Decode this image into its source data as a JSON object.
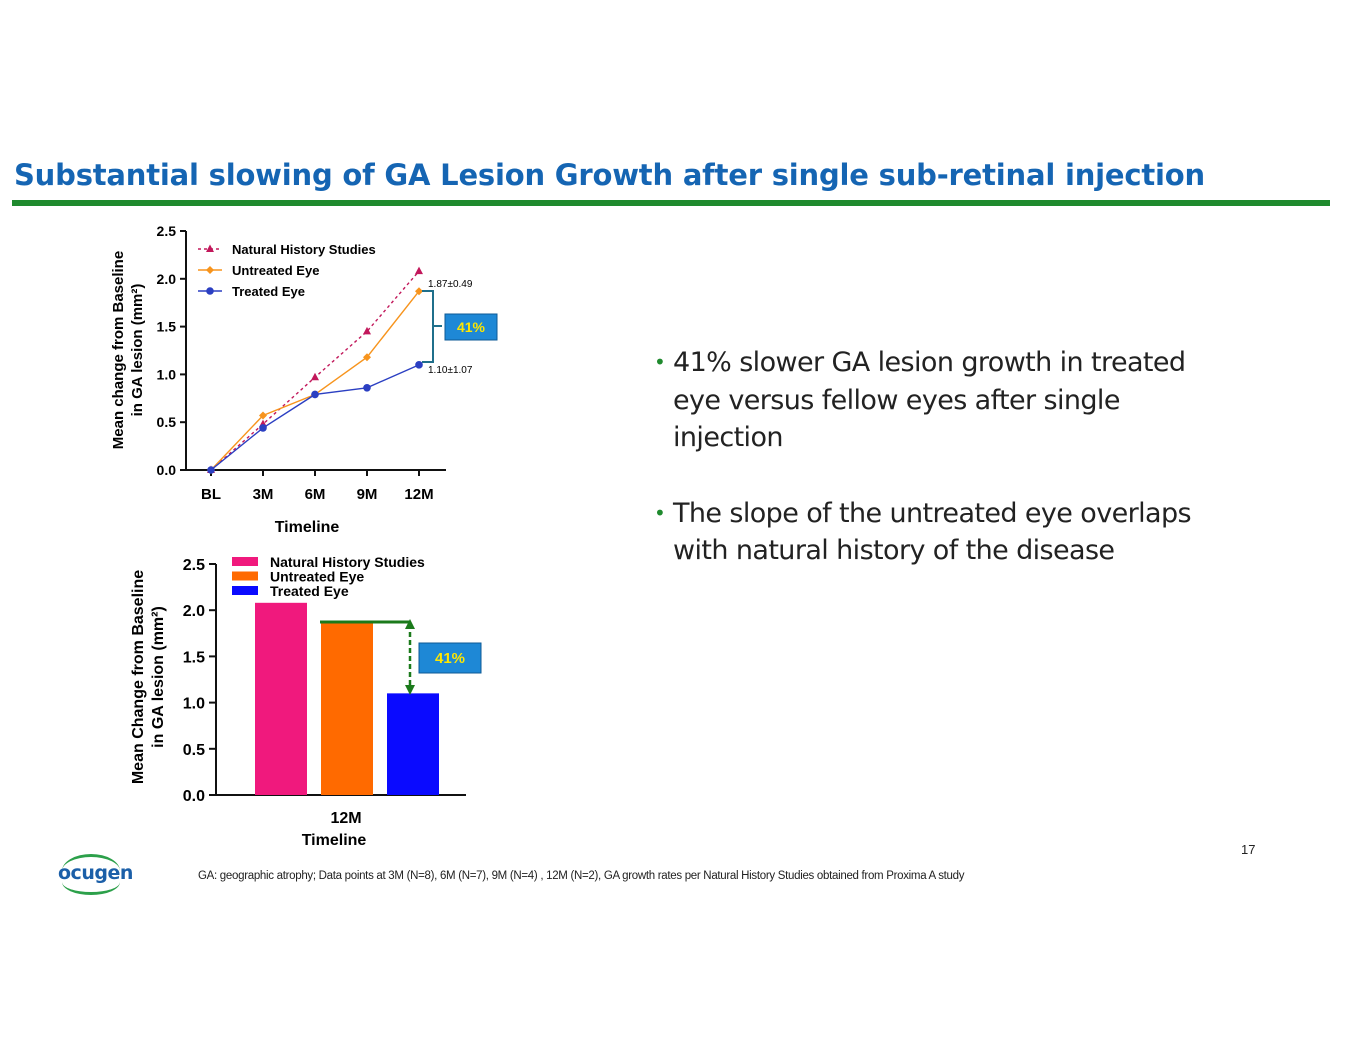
{
  "slide": {
    "title": "Substantial slowing of GA Lesion Growth after single sub-retinal injection",
    "bullets": [
      "41% slower GA lesion growth in treated eye versus fellow eyes after single injection",
      "The slope of the untreated eye overlaps with natural history of the disease"
    ],
    "footnote": "GA: geographic atrophy; Data points at 3M (N=8), 6M (N=7), 9M (N=4) , 12M (N=2), GA growth rates per Natural History Studies obtained from Proxima A study",
    "page_number": "17",
    "logo_text": "ocugen"
  },
  "colors": {
    "title": "#1565b3",
    "rule": "#1f8a2e",
    "natural_history": "#c2185b",
    "untreated": "#f7941d",
    "treated": "#2b3fc2",
    "bar_natural": "#f0197d",
    "bar_untreated": "#ff6a00",
    "bar_treated": "#0a0aff",
    "callout": "#1e88d6"
  },
  "chart_data": [
    {
      "type": "line",
      "xlabel": "Timeline",
      "ylabel_line1": "Mean change from Baseline",
      "ylabel_line2": "in GA lesion (mm²)",
      "categories": [
        "BL",
        "3M",
        "6M",
        "9M",
        "12M"
      ],
      "ylim": [
        0,
        2.5
      ],
      "yticks": [
        "0.0",
        "0.5",
        "1.0",
        "1.5",
        "2.0",
        "2.5"
      ],
      "legend_position": "top-left",
      "series": [
        {
          "name": "Natural History Studies",
          "marker": "triangle",
          "style": "dashed",
          "values": [
            0,
            0.48,
            0.97,
            1.45,
            2.08
          ]
        },
        {
          "name": "Untreated Eye",
          "marker": "diamond",
          "style": "solid",
          "values": [
            0,
            0.57,
            0.79,
            1.18,
            1.87
          ]
        },
        {
          "name": "Treated Eye",
          "marker": "circle",
          "style": "solid",
          "values": [
            0,
            0.44,
            0.79,
            0.86,
            1.1
          ]
        }
      ],
      "annotations": {
        "untreated_end": "1.87±0.49",
        "treated_end": "1.10±1.07",
        "callout": "41%"
      }
    },
    {
      "type": "bar",
      "xlabel": "Timeline",
      "ylabel_line1": "Mean Change from Baseline",
      "ylabel_line2": "in GA lesion (mm²)",
      "categories": [
        "12M"
      ],
      "ylim": [
        0,
        2.5
      ],
      "yticks": [
        "0.0",
        "0.5",
        "1.0",
        "1.5",
        "2.0",
        "2.5"
      ],
      "legend_position": "top",
      "series": [
        {
          "name": "Natural History Studies",
          "values": [
            2.08
          ]
        },
        {
          "name": "Untreated Eye",
          "values": [
            1.87
          ]
        },
        {
          "name": "Treated Eye",
          "values": [
            1.1
          ]
        }
      ],
      "annotations": {
        "callout": "41%"
      }
    }
  ]
}
